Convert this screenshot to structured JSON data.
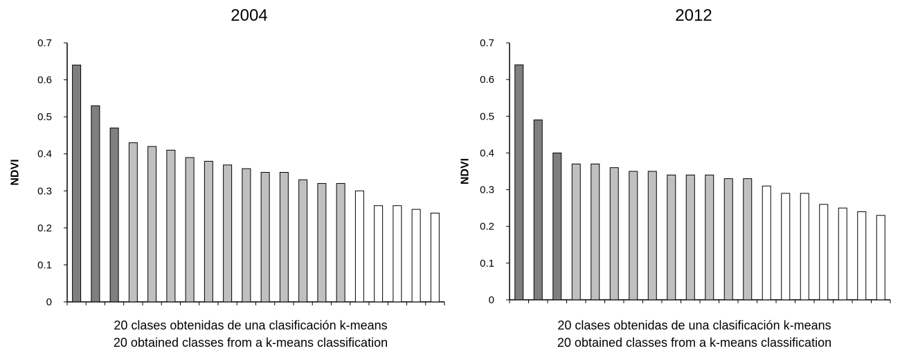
{
  "chart_data": [
    {
      "type": "bar",
      "title": "2004",
      "ylabel": "NDVI",
      "xlabel_lines": [
        "20 clases obtenidas de una clasificación k-means",
        "20 obtained classes from a k-means classification"
      ],
      "ylim": [
        0,
        0.7
      ],
      "yticks": [
        "0",
        "0.1",
        "0.2",
        "0.3",
        "0.4",
        "0.5",
        "0.6",
        "0.7"
      ],
      "grid": false,
      "values": [
        0.64,
        0.53,
        0.47,
        0.43,
        0.42,
        0.41,
        0.39,
        0.38,
        0.37,
        0.36,
        0.35,
        0.35,
        0.33,
        0.32,
        0.32,
        0.3,
        0.26,
        0.26,
        0.25,
        0.24
      ],
      "shades": [
        "dark",
        "dark",
        "dark",
        "light",
        "light",
        "light",
        "light",
        "light",
        "light",
        "light",
        "light",
        "light",
        "light",
        "light",
        "light",
        "white",
        "white",
        "white",
        "white",
        "white"
      ]
    },
    {
      "type": "bar",
      "title": "2012",
      "ylabel": "NDVI",
      "xlabel_lines": [
        "20 clases obtenidas de una clasificación k-means",
        "20 obtained classes from a k-means classification"
      ],
      "ylim": [
        0,
        0.7
      ],
      "yticks": [
        "0",
        "0.1",
        "0.2",
        "0.3",
        "0.4",
        "0.5",
        "0.6",
        "0.7"
      ],
      "grid": false,
      "values": [
        0.64,
        0.49,
        0.4,
        0.37,
        0.37,
        0.36,
        0.35,
        0.35,
        0.34,
        0.34,
        0.34,
        0.33,
        0.33,
        0.31,
        0.29,
        0.29,
        0.26,
        0.25,
        0.24,
        0.23
      ],
      "shades": [
        "dark",
        "dark",
        "dark",
        "light",
        "light",
        "light",
        "light",
        "light",
        "light",
        "light",
        "light",
        "light",
        "light",
        "white",
        "white",
        "white",
        "white",
        "white",
        "white",
        "white"
      ]
    }
  ],
  "colors": {
    "dark": "#7f7f7f",
    "light": "#c0c0c0",
    "white": "#ffffff",
    "stroke": "#000000"
  }
}
